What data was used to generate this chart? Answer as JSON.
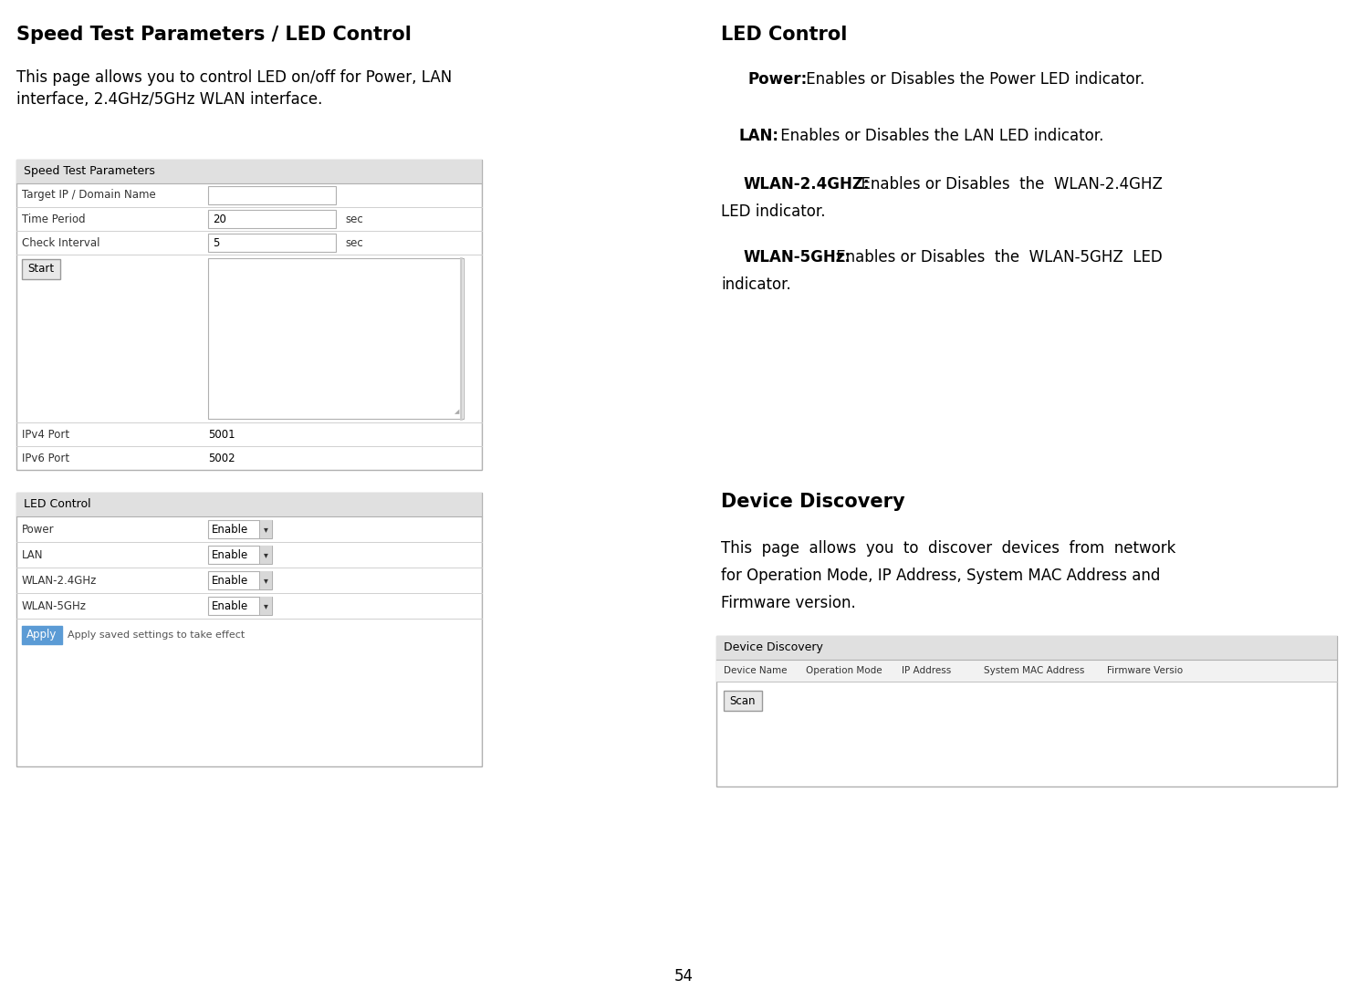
{
  "bg_color": "#ffffff",
  "page_number": "54",
  "left_title": "Speed Test Parameters / LED Control",
  "left_intro_line1": "This page allows you to control LED on/off for Power, LAN",
  "left_intro_line2": "interface, 2.4GHz/5GHz WLAN interface.",
  "speed_test_panel_title": "Speed Test Parameters",
  "speed_test_rows": [
    {
      "label": "Target IP / Domain Name",
      "value": "",
      "unit": ""
    },
    {
      "label": "Time Period",
      "value": "20",
      "unit": "sec"
    },
    {
      "label": "Check Interval",
      "value": "5",
      "unit": "sec"
    }
  ],
  "start_button": "Start",
  "ipv4_label": "IPv4 Port",
  "ipv4_value": "5001",
  "ipv6_label": "IPv6 Port",
  "ipv6_value": "5002",
  "led_panel_title": "LED Control",
  "led_rows": [
    {
      "label": "Power",
      "value": "Enable"
    },
    {
      "label": "LAN",
      "value": "Enable"
    },
    {
      "label": "WLAN-2.4GHz",
      "value": "Enable"
    },
    {
      "label": "WLAN-5GHz",
      "value": "Enable"
    }
  ],
  "apply_button": "Apply",
  "apply_note": "Apply saved settings to take effect",
  "right_title1": "LED Control",
  "right_title2": "Device Discovery",
  "device_discovery_intro_line1": "This  page  allows  you  to  discover  devices  from  network",
  "device_discovery_intro_line2": "for Operation Mode, IP Address, System MAC Address and",
  "device_discovery_intro_line3": "Firmware version.",
  "device_panel_title": "Device Discovery",
  "device_columns": [
    "Device Name",
    "Operation Mode",
    "IP Address",
    "System MAC Address",
    "Firmware Versio"
  ],
  "scan_button": "Scan",
  "panel_border_color": "#b0b0b0",
  "panel_header_bg": "#e0e0e0",
  "row_line_color": "#d0d0d0",
  "text_color": "#000000",
  "label_color": "#333333",
  "button_border": "#999999",
  "button_bg": "#e8e8e8",
  "input_border": "#b0b0b0",
  "input_bg": "#ffffff",
  "apply_btn_color": "#5b9bd5",
  "apply_btn_text": "#ffffff"
}
